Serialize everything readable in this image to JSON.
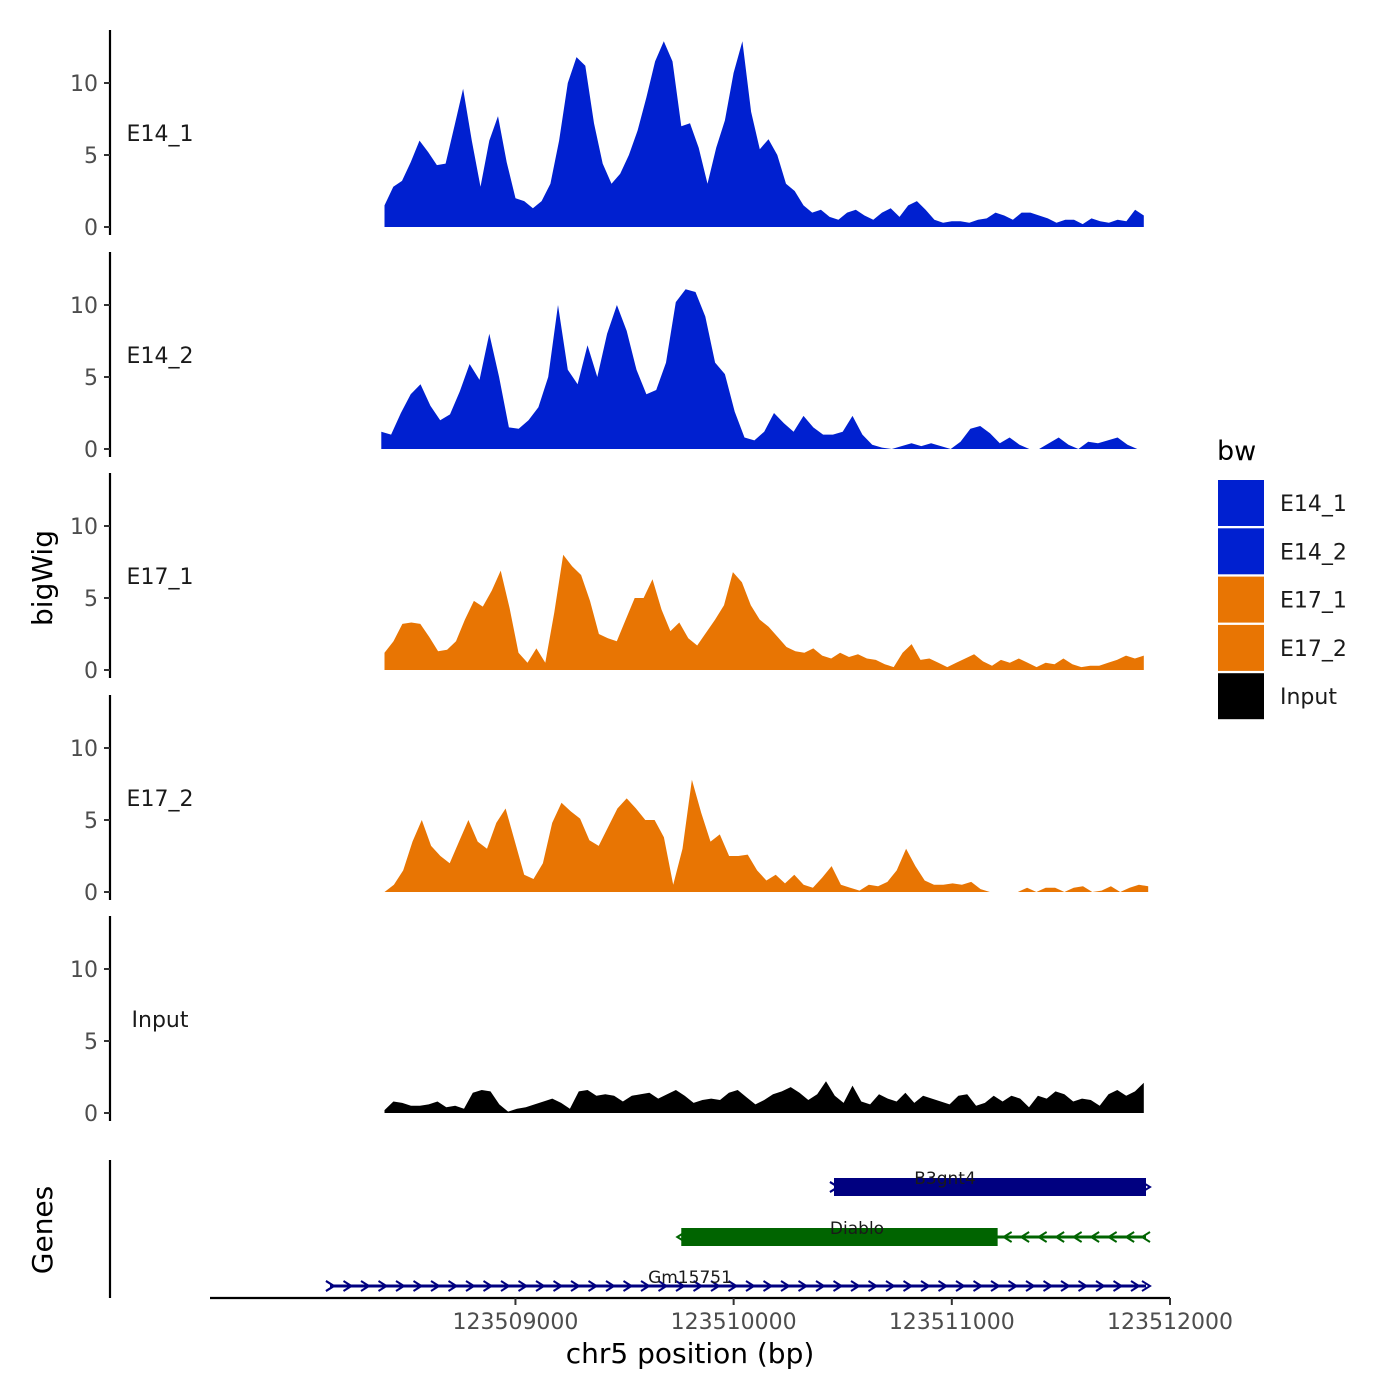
{
  "chart_data": {
    "type": "area",
    "title": "",
    "xlabel": "chr5 position (bp)",
    "ylabel": "bigWig",
    "genes_axis_label": "Genes",
    "xlim": [
      123507600,
      123512000
    ],
    "ylim": [
      0,
      13.5
    ],
    "yticks": [
      0,
      5,
      10
    ],
    "xticks": [
      123509000,
      123510000,
      123511000,
      123512000
    ],
    "xtick_labels": [
      "123509000",
      "123510000",
      "123511000",
      "123512000"
    ],
    "grid": false,
    "legend": {
      "title": "bw",
      "position": "right",
      "entries": [
        {
          "label": "E14_1",
          "color": "#0020d0"
        },
        {
          "label": "E14_2",
          "color": "#0020d0"
        },
        {
          "label": "E17_1",
          "color": "#e87503"
        },
        {
          "label": "E17_2",
          "color": "#e87503"
        },
        {
          "label": "Input",
          "color": "#000000"
        }
      ]
    },
    "tracks": [
      {
        "name": "E14_1",
        "color": "#0020d0",
        "x_start": 123508400,
        "x_end": 123511880,
        "values": [
          1.5,
          2.8,
          3.2,
          4.5,
          6,
          5.2,
          4.3,
          4.4,
          7,
          9.6,
          6,
          2.8,
          6,
          7.7,
          4.5,
          2,
          1.8,
          1.3,
          1.8,
          3,
          6,
          10,
          11.8,
          11.2,
          7.2,
          4.4,
          3,
          3.7,
          5,
          6.7,
          9,
          11.5,
          12.9,
          11.5,
          7,
          7.2,
          5.5,
          3,
          5.5,
          7.4,
          10.7,
          12.9,
          8,
          5.4,
          6.1,
          5,
          3,
          2.5,
          1.5,
          1,
          1.2,
          0.7,
          0.5,
          1,
          1.2,
          0.8,
          0.5,
          1,
          1.3,
          0.7,
          1.5,
          1.8,
          1.2,
          0.5,
          0.3,
          0.4,
          0.4,
          0.3,
          0.5,
          0.6,
          1,
          0.8,
          0.5,
          1,
          1,
          0.8,
          0.6,
          0.3,
          0.5,
          0.5,
          0.2,
          0.6,
          0.4,
          0.3,
          0.5,
          0.4,
          1.2,
          0.8
        ]
      },
      {
        "name": "E14_2",
        "color": "#0020d0",
        "x_start": 123508385,
        "x_end": 123511850,
        "values": [
          1.2,
          1,
          2.5,
          3.8,
          4.5,
          3,
          2,
          2.4,
          4,
          5.9,
          4.8,
          8,
          5,
          1.5,
          1.4,
          2,
          2.9,
          5,
          10,
          5.5,
          4.5,
          7.2,
          5,
          8,
          10,
          8.2,
          5.5,
          3.8,
          4.1,
          6,
          10.2,
          11.1,
          10.9,
          9.2,
          6,
          5.2,
          2.6,
          0.8,
          0.6,
          1.2,
          2.5,
          1.8,
          1.2,
          2.3,
          1.5,
          1,
          1,
          1.2,
          2.3,
          1,
          0.3,
          0.1,
          0,
          0.2,
          0.4,
          0.2,
          0.4,
          0.2,
          0,
          0.5,
          1.4,
          1.6,
          1.1,
          0.4,
          0.8,
          0.3,
          0,
          0,
          0.4,
          0.8,
          0.3,
          0,
          0.5,
          0.4,
          0.6,
          0.8,
          0.3,
          0
        ]
      },
      {
        "name": "E17_1",
        "color": "#e87503",
        "x_start": 123508400,
        "x_end": 123511880,
        "values": [
          1.2,
          2,
          3.2,
          3.3,
          3.2,
          2.3,
          1.3,
          1.4,
          2,
          3.5,
          4.8,
          4.4,
          5.5,
          6.9,
          4.3,
          1.2,
          0.5,
          1.5,
          0.5,
          4,
          8,
          7.2,
          6.6,
          4.8,
          2.5,
          2.2,
          2,
          3.5,
          5,
          5,
          6.3,
          4.2,
          2.7,
          3.3,
          2.2,
          1.7,
          2.6,
          3.5,
          4.5,
          6.8,
          6.1,
          4.5,
          3.5,
          3,
          2.3,
          1.6,
          1.3,
          1.2,
          1.5,
          1,
          0.8,
          1.2,
          0.9,
          1.1,
          0.8,
          0.7,
          0.4,
          0.2,
          1.2,
          1.8,
          0.7,
          0.8,
          0.5,
          0.2,
          0.5,
          0.8,
          1.1,
          0.6,
          0.3,
          0.7,
          0.5,
          0.8,
          0.5,
          0.2,
          0.5,
          0.4,
          0.8,
          0.4,
          0.2,
          0.3,
          0.3,
          0.5,
          0.7,
          1,
          0.8,
          1
        ]
      },
      {
        "name": "E17_2",
        "color": "#e87503",
        "x_start": 123508400,
        "x_end": 123511900,
        "values": [
          0,
          0.5,
          1.5,
          3.5,
          5,
          3.2,
          2.5,
          2,
          3.5,
          5,
          3.5,
          3,
          4.8,
          5.8,
          3.5,
          1.2,
          0.9,
          2,
          4.8,
          6.2,
          5.6,
          5.1,
          3.6,
          3.2,
          4.5,
          5.8,
          6.5,
          5.8,
          5,
          5,
          3.8,
          0.5,
          3,
          7.8,
          5.5,
          3.5,
          4,
          2.5,
          2.5,
          2.6,
          1.5,
          0.8,
          1.2,
          0.6,
          1.2,
          0.5,
          0.3,
          1,
          1.8,
          0.5,
          0.3,
          0.1,
          0.5,
          0.4,
          0.7,
          1.5,
          3,
          1.8,
          0.8,
          0.5,
          0.5,
          0.6,
          0.5,
          0.7,
          0.2,
          0,
          0,
          0,
          0,
          0.3,
          0,
          0.3,
          0.3,
          0,
          0.3,
          0.4,
          0,
          0.1,
          0.4,
          0,
          0.3,
          0.5,
          0.4
        ]
      },
      {
        "name": "Input",
        "color": "#000000",
        "x_start": 123508400,
        "x_end": 123511880,
        "values": [
          0.2,
          0.8,
          0.7,
          0.5,
          0.5,
          0.6,
          0.8,
          0.4,
          0.5,
          0.3,
          1.4,
          1.6,
          1.5,
          0.6,
          0.1,
          0.3,
          0.4,
          0.6,
          0.8,
          1,
          0.7,
          0.3,
          1.5,
          1.6,
          1.2,
          1.3,
          1.2,
          0.8,
          1.2,
          1.3,
          1.4,
          1,
          1.3,
          1.6,
          1.2,
          0.7,
          0.9,
          1,
          0.9,
          1.4,
          1.6,
          1.1,
          0.6,
          0.9,
          1.3,
          1.5,
          1.8,
          1.4,
          0.9,
          1.3,
          2.2,
          1.2,
          0.7,
          1.9,
          0.8,
          0.6,
          1.3,
          1,
          0.8,
          1.4,
          0.7,
          1.2,
          1,
          0.8,
          0.6,
          1.2,
          1.3,
          0.5,
          0.7,
          1.2,
          0.8,
          1.2,
          1,
          0.4,
          1.2,
          1,
          1.5,
          1.3,
          0.8,
          1,
          0.9,
          0.5,
          1.3,
          1.6,
          1.2,
          1.5,
          2.1
        ]
      }
    ],
    "genes": [
      {
        "name": "B3gnt4",
        "strand": "+",
        "color": "#000080",
        "tx_start": 123510460,
        "tx_end": 123511890,
        "cds_start": 123510460,
        "cds_end": 123511890
      },
      {
        "name": "Diablo",
        "strand": "-",
        "color": "#006400",
        "tx_start": 123509760,
        "tx_end": 123511890,
        "cds_start": 123509760,
        "cds_end": 123511210
      },
      {
        "name": "Gm15751",
        "strand": "+",
        "color": "#000080",
        "tx_start": 123508150,
        "tx_end": 123511890,
        "cds_start": null,
        "cds_end": null
      }
    ]
  }
}
